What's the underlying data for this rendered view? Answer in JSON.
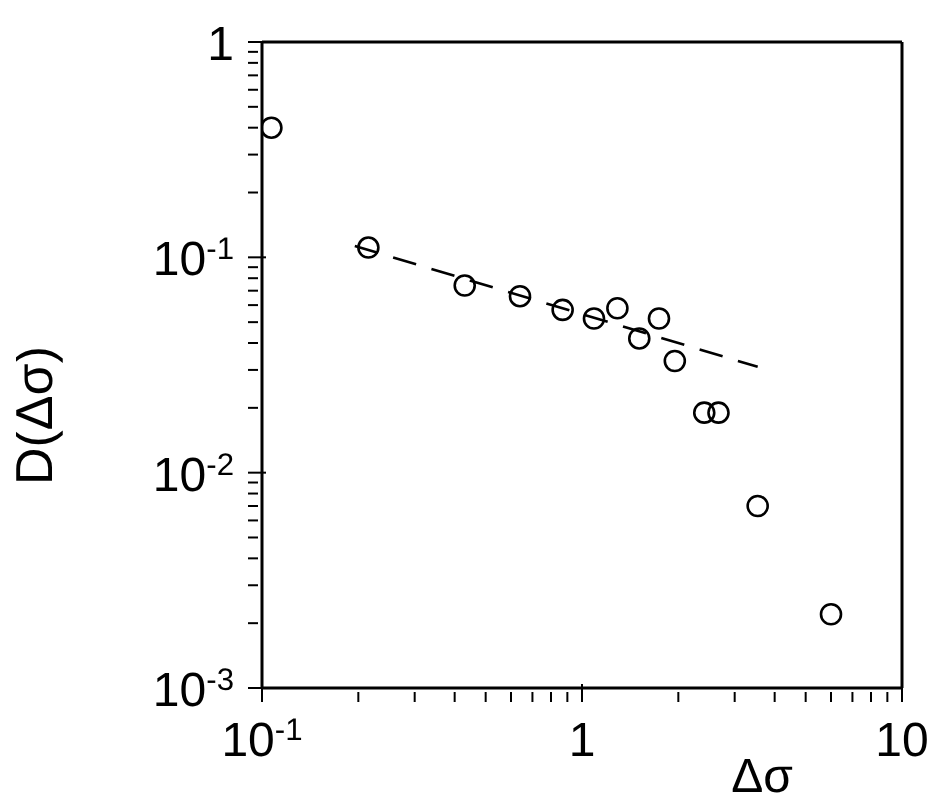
{
  "chart_data": {
    "type": "scatter",
    "xlabel": "Δσ",
    "ylabel": "D(Δσ)",
    "log": "xy",
    "xlim": [
      0.1,
      10
    ],
    "ylim": [
      0.001,
      1
    ],
    "xticks": [
      {
        "value": 0.1,
        "label": "10$^{-1}$"
      },
      {
        "value": 0.2,
        "label": null
      },
      {
        "value": 0.3,
        "label": null
      },
      {
        "value": 0.4,
        "label": null
      },
      {
        "value": 0.5,
        "label": null
      },
      {
        "value": 0.6,
        "label": null
      },
      {
        "value": 0.7,
        "label": null
      },
      {
        "value": 0.8,
        "label": null
      },
      {
        "value": 0.9,
        "label": null
      },
      {
        "value": 1,
        "label": "1"
      },
      {
        "value": 2,
        "label": null
      },
      {
        "value": 3,
        "label": null
      },
      {
        "value": 4,
        "label": null
      },
      {
        "value": 5,
        "label": null
      },
      {
        "value": 6,
        "label": null
      },
      {
        "value": 7,
        "label": null
      },
      {
        "value": 8,
        "label": null
      },
      {
        "value": 9,
        "label": null
      },
      {
        "value": 10,
        "label": "10"
      }
    ],
    "yticks": [
      {
        "value": 0.001,
        "label": "10$^{-3}$"
      },
      {
        "value": 0.002,
        "label": null
      },
      {
        "value": 0.003,
        "label": null
      },
      {
        "value": 0.004,
        "label": null
      },
      {
        "value": 0.005,
        "label": null
      },
      {
        "value": 0.006,
        "label": null
      },
      {
        "value": 0.007,
        "label": null
      },
      {
        "value": 0.008,
        "label": null
      },
      {
        "value": 0.009,
        "label": null
      },
      {
        "value": 0.01,
        "label": "10$^{-2}$"
      },
      {
        "value": 0.02,
        "label": null
      },
      {
        "value": 0.03,
        "label": null
      },
      {
        "value": 0.04,
        "label": null
      },
      {
        "value": 0.05,
        "label": null
      },
      {
        "value": 0.06,
        "label": null
      },
      {
        "value": 0.07,
        "label": null
      },
      {
        "value": 0.08,
        "label": null
      },
      {
        "value": 0.09,
        "label": null
      },
      {
        "value": 0.1,
        "label": "10$^{-1}$"
      },
      {
        "value": 0.2,
        "label": null
      },
      {
        "value": 0.3,
        "label": null
      },
      {
        "value": 0.4,
        "label": null
      },
      {
        "value": 0.5,
        "label": null
      },
      {
        "value": 0.6,
        "label": null
      },
      {
        "value": 0.7,
        "label": null
      },
      {
        "value": 0.8,
        "label": null
      },
      {
        "value": 0.9,
        "label": null
      },
      {
        "value": 1,
        "label": "1"
      }
    ],
    "series": [
      {
        "color": "#000000",
        "marker": "circle",
        "x": [
          0.107,
          0.215,
          0.43,
          0.64,
          0.87,
          1.09,
          1.29,
          1.51,
          1.74,
          1.95,
          2.41,
          2.67,
          3.54,
          6.0
        ],
        "values": [
          0.4,
          0.111,
          0.074,
          0.066,
          0.057,
          0.052,
          0.058,
          0.042,
          0.052,
          0.033,
          0.019,
          0.019,
          0.007,
          0.0022
        ]
      },
      {
        "type": "line",
        "color": "#000000",
        "marker": "none",
        "line_style": "dashed",
        "x": [
          0.195,
          3.54
        ],
        "values": [
          0.113,
          0.031
        ]
      }
    ]
  }
}
